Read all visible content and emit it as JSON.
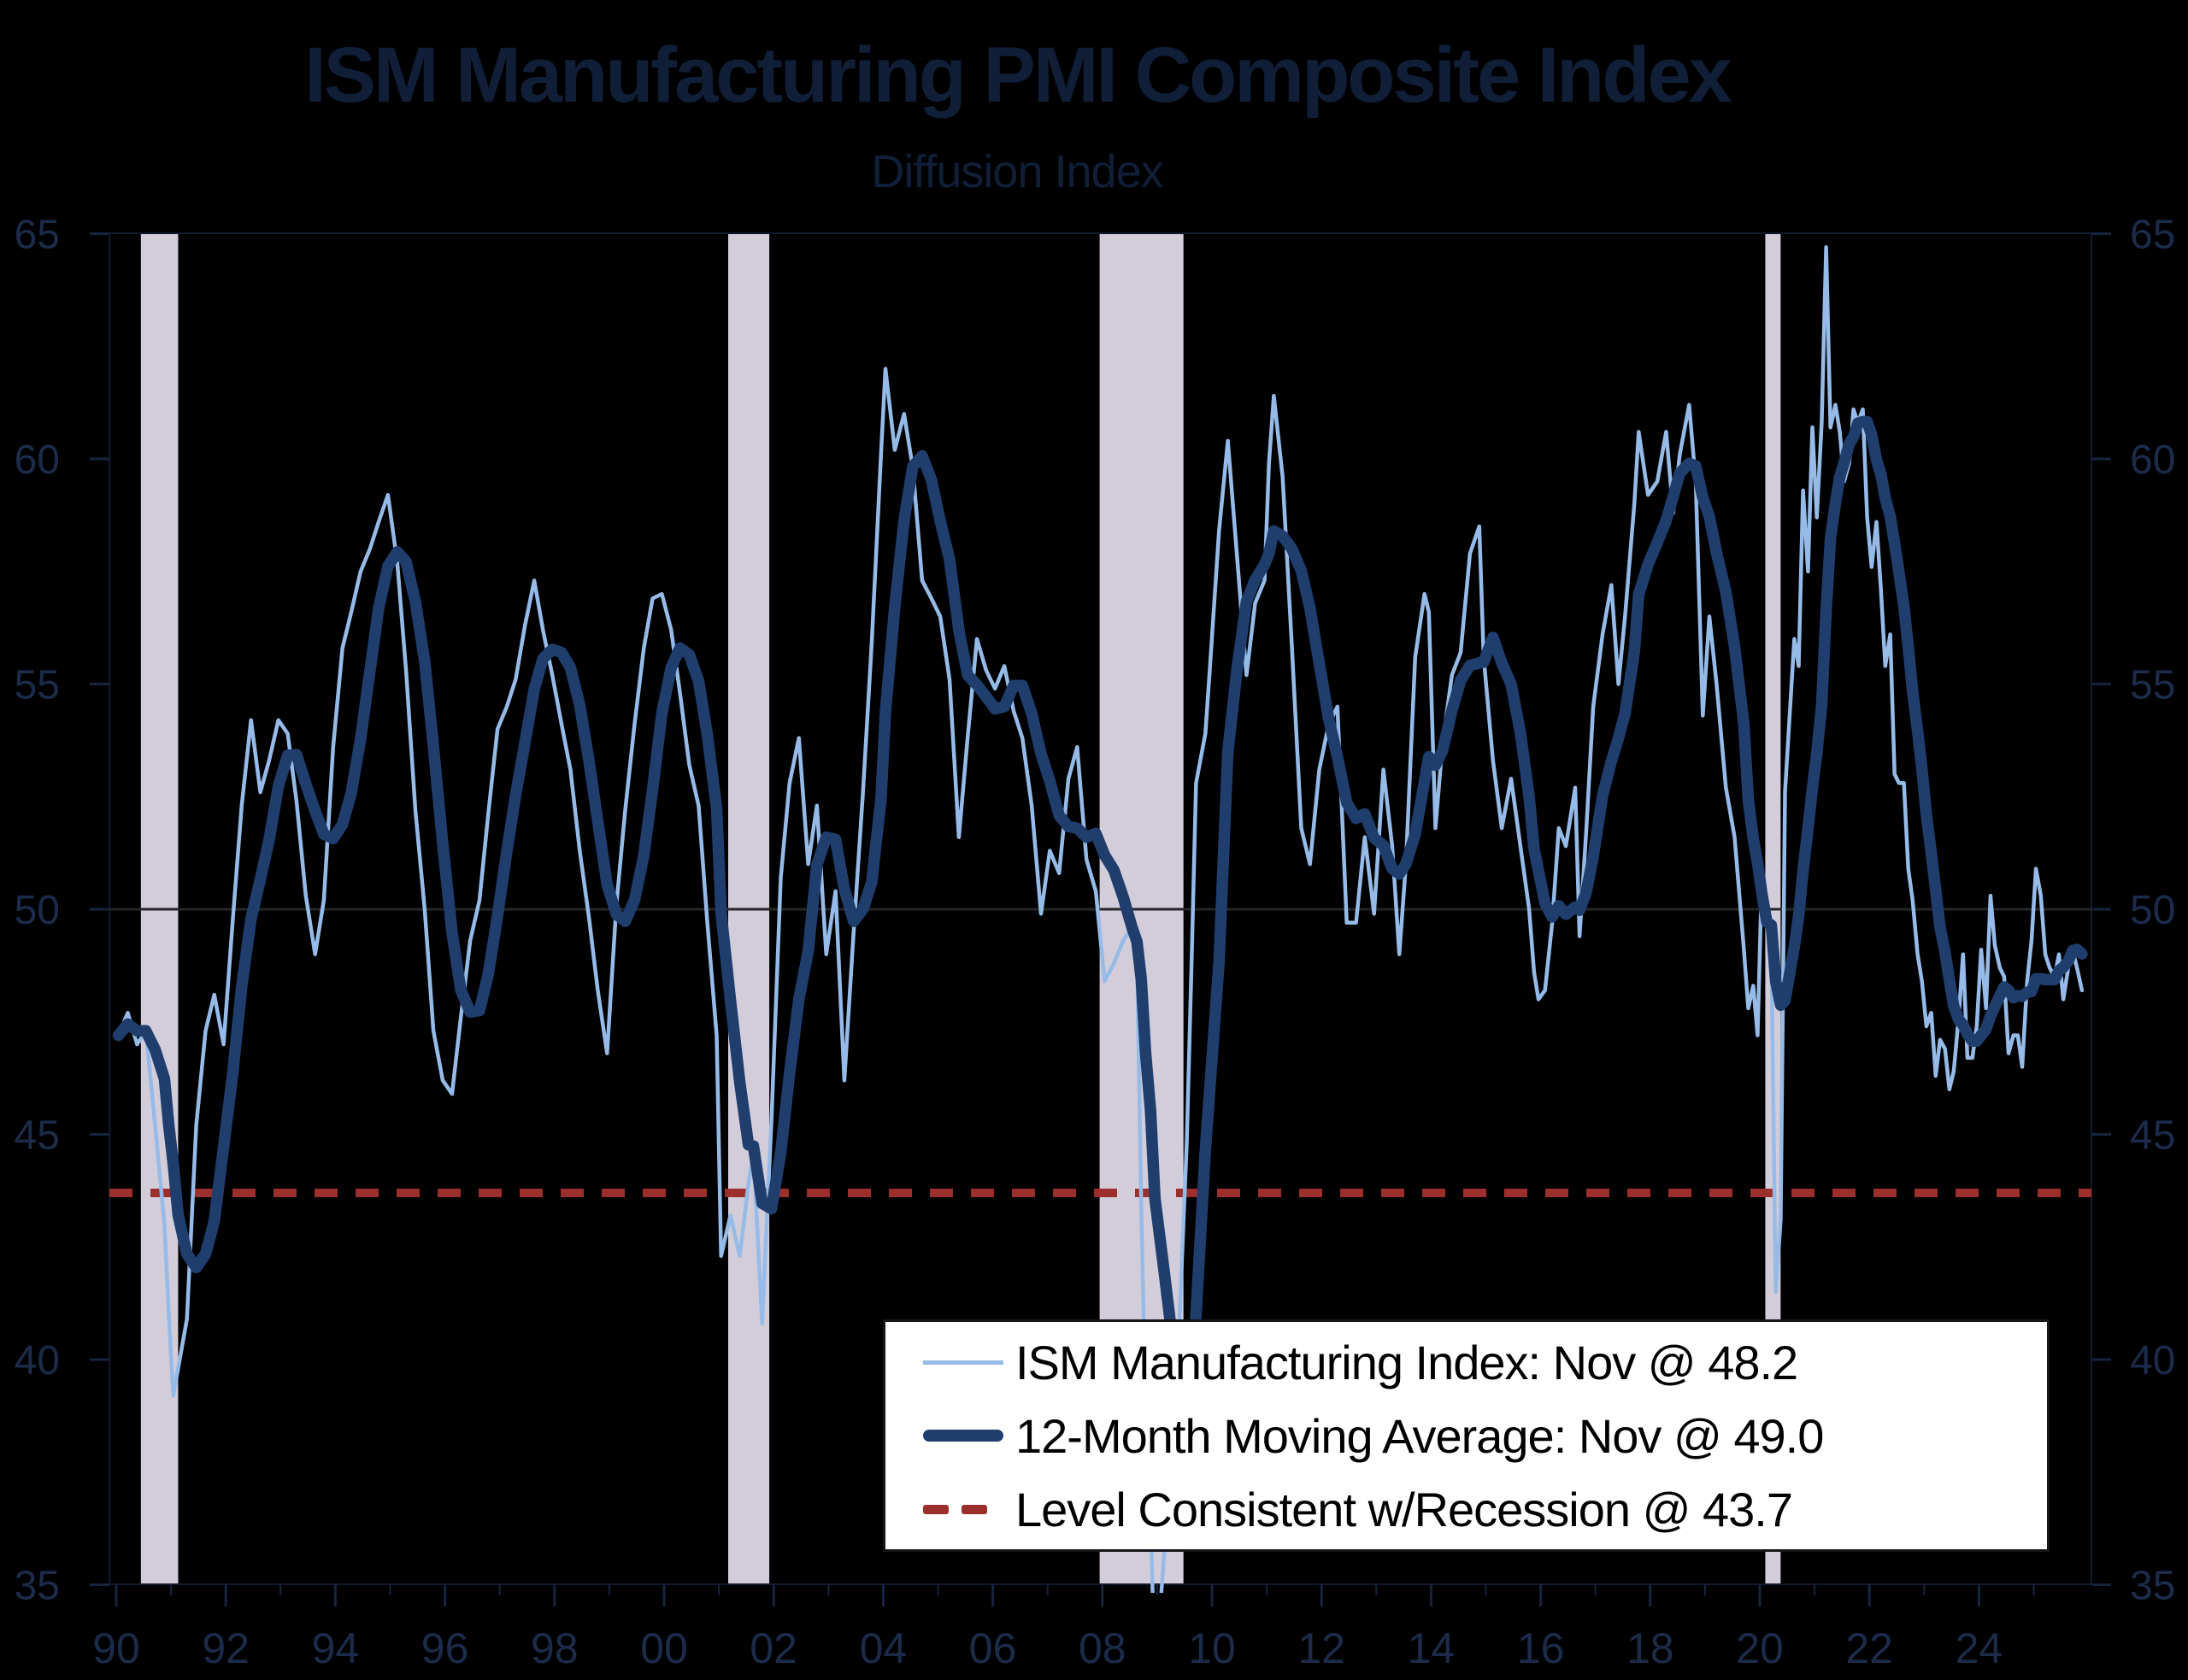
{
  "page": {
    "background": "#000000"
  },
  "chart_data": {
    "type": "line",
    "title": "ISM Manufacturing PMI Composite Index",
    "subtitle": "Diffusion Index",
    "xlabel": "",
    "ylabel": "Diffusion Index",
    "grid": false,
    "legend_position": "inside lower-right, white box with black border",
    "x_axis": {
      "range_years": [
        1989.87,
        2026.05
      ],
      "tick_label_years": [
        1990,
        1992,
        1994,
        1996,
        1998,
        2000,
        2002,
        2004,
        2006,
        2008,
        2010,
        2012,
        2014,
        2016,
        2018,
        2020,
        2022,
        2024
      ],
      "tick_labels": [
        "90",
        "92",
        "94",
        "96",
        "98",
        "00",
        "02",
        "04",
        "06",
        "08",
        "10",
        "12",
        "14",
        "16",
        "18",
        "20",
        "22",
        "24"
      ],
      "minor_tick_every_years": 1
    },
    "y_axis": {
      "range": [
        35,
        65
      ],
      "ticks": [
        35,
        40,
        45,
        50,
        55,
        60,
        65
      ],
      "sides": "both"
    },
    "reference_lines": {
      "midpoint": 50,
      "recession_level": 43.7
    },
    "recession_bands": [
      [
        1990.45,
        1991.13
      ],
      [
        2001.17,
        2001.92
      ],
      [
        2007.95,
        2009.48
      ],
      [
        2020.1,
        2020.38
      ]
    ],
    "latest": {
      "month": "Nov",
      "ism": 48.2,
      "moving_average": 49.0,
      "recession_level": 43.7
    },
    "series": [
      {
        "name": "ISM Manufacturing Index",
        "legend_label": "ISM Manufacturing Index: Nov @ 48.2",
        "color": "#96BBE8",
        "width": 4.5,
        "style": "solid",
        "values": [
          [
            1990.04,
            47.2
          ],
          [
            1990.21,
            47.7
          ],
          [
            1990.38,
            47.0
          ],
          [
            1990.54,
            47.3
          ],
          [
            1990.71,
            45.2
          ],
          [
            1990.88,
            43.0
          ],
          [
            1990.96,
            41.0
          ],
          [
            1991.04,
            39.2
          ],
          [
            1991.13,
            39.8
          ],
          [
            1991.29,
            40.9
          ],
          [
            1991.46,
            45.2
          ],
          [
            1991.63,
            47.3
          ],
          [
            1991.79,
            48.1
          ],
          [
            1991.96,
            47.0
          ],
          [
            1992.13,
            49.8
          ],
          [
            1992.29,
            52.3
          ],
          [
            1992.46,
            54.2
          ],
          [
            1992.63,
            52.6
          ],
          [
            1992.79,
            53.3
          ],
          [
            1992.96,
            54.2
          ],
          [
            1993.13,
            53.9
          ],
          [
            1993.29,
            52.4
          ],
          [
            1993.46,
            50.3
          ],
          [
            1993.63,
            49.0
          ],
          [
            1993.79,
            50.2
          ],
          [
            1993.96,
            53.6
          ],
          [
            1994.13,
            55.8
          ],
          [
            1994.29,
            56.6
          ],
          [
            1994.46,
            57.5
          ],
          [
            1994.63,
            58.0
          ],
          [
            1994.79,
            58.6
          ],
          [
            1994.96,
            59.2
          ],
          [
            1995.13,
            57.7
          ],
          [
            1995.29,
            55.3
          ],
          [
            1995.46,
            52.2
          ],
          [
            1995.63,
            50.0
          ],
          [
            1995.79,
            47.3
          ],
          [
            1995.96,
            46.2
          ],
          [
            1996.13,
            45.9
          ],
          [
            1996.29,
            47.6
          ],
          [
            1996.46,
            49.3
          ],
          [
            1996.63,
            50.2
          ],
          [
            1996.79,
            52.1
          ],
          [
            1996.96,
            54.0
          ],
          [
            1997.13,
            54.5
          ],
          [
            1997.29,
            55.1
          ],
          [
            1997.46,
            56.3
          ],
          [
            1997.63,
            57.3
          ],
          [
            1997.79,
            56.2
          ],
          [
            1997.96,
            55.2
          ],
          [
            1998.13,
            54.1
          ],
          [
            1998.29,
            53.1
          ],
          [
            1998.46,
            51.3
          ],
          [
            1998.63,
            49.8
          ],
          [
            1998.79,
            48.2
          ],
          [
            1998.96,
            46.8
          ],
          [
            1999.13,
            50.1
          ],
          [
            1999.29,
            52.2
          ],
          [
            1999.46,
            54.1
          ],
          [
            1999.63,
            55.8
          ],
          [
            1999.79,
            56.9
          ],
          [
            1999.96,
            57.0
          ],
          [
            2000.13,
            56.2
          ],
          [
            2000.29,
            54.8
          ],
          [
            2000.46,
            53.2
          ],
          [
            2000.63,
            52.3
          ],
          [
            2000.79,
            49.7
          ],
          [
            2000.96,
            47.2
          ],
          [
            2001.04,
            42.3
          ],
          [
            2001.21,
            43.2
          ],
          [
            2001.38,
            42.3
          ],
          [
            2001.54,
            43.9
          ],
          [
            2001.63,
            44.6
          ],
          [
            2001.79,
            40.8
          ],
          [
            2001.96,
            45.3
          ],
          [
            2002.13,
            50.7
          ],
          [
            2002.29,
            52.8
          ],
          [
            2002.46,
            53.8
          ],
          [
            2002.63,
            51.0
          ],
          [
            2002.79,
            52.3
          ],
          [
            2002.96,
            49.0
          ],
          [
            2003.13,
            50.4
          ],
          [
            2003.29,
            46.2
          ],
          [
            2003.46,
            49.5
          ],
          [
            2003.63,
            52.6
          ],
          [
            2003.79,
            55.9
          ],
          [
            2003.96,
            60.1
          ],
          [
            2004.04,
            62.0
          ],
          [
            2004.21,
            60.2
          ],
          [
            2004.38,
            61.0
          ],
          [
            2004.54,
            59.8
          ],
          [
            2004.71,
            57.3
          ],
          [
            2004.88,
            56.9
          ],
          [
            2005.04,
            56.5
          ],
          [
            2005.21,
            55.1
          ],
          [
            2005.38,
            51.6
          ],
          [
            2005.54,
            53.8
          ],
          [
            2005.71,
            56.0
          ],
          [
            2005.88,
            55.3
          ],
          [
            2006.04,
            54.9
          ],
          [
            2006.21,
            55.4
          ],
          [
            2006.38,
            54.4
          ],
          [
            2006.54,
            53.8
          ],
          [
            2006.71,
            52.3
          ],
          [
            2006.88,
            49.9
          ],
          [
            2007.04,
            51.3
          ],
          [
            2007.21,
            50.8
          ],
          [
            2007.38,
            52.9
          ],
          [
            2007.54,
            53.6
          ],
          [
            2007.71,
            51.1
          ],
          [
            2007.88,
            50.4
          ],
          [
            2008.04,
            48.4
          ],
          [
            2008.21,
            48.8
          ],
          [
            2008.38,
            49.3
          ],
          [
            2008.54,
            49.6
          ],
          [
            2008.63,
            49.2
          ],
          [
            2008.71,
            43.4
          ],
          [
            2008.79,
            38.9
          ],
          [
            2008.88,
            36.5
          ],
          [
            2008.96,
            32.9
          ],
          [
            2009.13,
            35.7
          ],
          [
            2009.29,
            36.4
          ],
          [
            2009.38,
            40.1
          ],
          [
            2009.54,
            44.8
          ],
          [
            2009.63,
            48.9
          ],
          [
            2009.71,
            52.8
          ],
          [
            2009.88,
            53.9
          ],
          [
            2009.96,
            55.3
          ],
          [
            2010.13,
            58.4
          ],
          [
            2010.29,
            60.4
          ],
          [
            2010.46,
            57.8
          ],
          [
            2010.63,
            55.2
          ],
          [
            2010.79,
            56.8
          ],
          [
            2010.96,
            57.3
          ],
          [
            2011.04,
            59.9
          ],
          [
            2011.13,
            61.4
          ],
          [
            2011.29,
            59.6
          ],
          [
            2011.46,
            55.8
          ],
          [
            2011.63,
            51.8
          ],
          [
            2011.79,
            51.0
          ],
          [
            2011.96,
            53.1
          ],
          [
            2012.13,
            54.1
          ],
          [
            2012.29,
            54.5
          ],
          [
            2012.46,
            49.7
          ],
          [
            2012.63,
            49.7
          ],
          [
            2012.79,
            51.6
          ],
          [
            2012.96,
            49.9
          ],
          [
            2013.13,
            53.1
          ],
          [
            2013.29,
            51.4
          ],
          [
            2013.42,
            49.0
          ],
          [
            2013.54,
            51.0
          ],
          [
            2013.71,
            55.6
          ],
          [
            2013.88,
            57.0
          ],
          [
            2013.96,
            56.6
          ],
          [
            2014.08,
            51.8
          ],
          [
            2014.21,
            53.7
          ],
          [
            2014.38,
            55.2
          ],
          [
            2014.54,
            55.7
          ],
          [
            2014.71,
            57.9
          ],
          [
            2014.88,
            58.5
          ],
          [
            2014.96,
            55.6
          ],
          [
            2015.13,
            53.3
          ],
          [
            2015.29,
            51.8
          ],
          [
            2015.46,
            52.9
          ],
          [
            2015.63,
            51.4
          ],
          [
            2015.79,
            50.0
          ],
          [
            2015.88,
            48.6
          ],
          [
            2015.96,
            48.0
          ],
          [
            2016.08,
            48.2
          ],
          [
            2016.21,
            49.7
          ],
          [
            2016.33,
            51.8
          ],
          [
            2016.46,
            51.4
          ],
          [
            2016.63,
            52.7
          ],
          [
            2016.71,
            49.4
          ],
          [
            2016.83,
            51.7
          ],
          [
            2016.96,
            54.5
          ],
          [
            2017.13,
            56.1
          ],
          [
            2017.29,
            57.2
          ],
          [
            2017.42,
            55.0
          ],
          [
            2017.54,
            56.5
          ],
          [
            2017.71,
            59.0
          ],
          [
            2017.79,
            60.6
          ],
          [
            2017.96,
            59.2
          ],
          [
            2018.13,
            59.5
          ],
          [
            2018.29,
            60.6
          ],
          [
            2018.42,
            58.8
          ],
          [
            2018.54,
            60.1
          ],
          [
            2018.71,
            61.2
          ],
          [
            2018.83,
            59.5
          ],
          [
            2018.96,
            54.3
          ],
          [
            2019.08,
            56.5
          ],
          [
            2019.21,
            55.0
          ],
          [
            2019.38,
            52.7
          ],
          [
            2019.54,
            51.6
          ],
          [
            2019.71,
            49.1
          ],
          [
            2019.79,
            47.8
          ],
          [
            2019.88,
            48.3
          ],
          [
            2019.96,
            47.2
          ],
          [
            2020.04,
            50.9
          ],
          [
            2020.13,
            50.1
          ],
          [
            2020.21,
            49.1
          ],
          [
            2020.29,
            41.5
          ],
          [
            2020.38,
            43.1
          ],
          [
            2020.46,
            52.6
          ],
          [
            2020.54,
            54.2
          ],
          [
            2020.63,
            56.0
          ],
          [
            2020.71,
            55.4
          ],
          [
            2020.79,
            59.3
          ],
          [
            2020.88,
            57.5
          ],
          [
            2020.96,
            60.7
          ],
          [
            2021.04,
            58.7
          ],
          [
            2021.13,
            60.8
          ],
          [
            2021.21,
            64.7
          ],
          [
            2021.29,
            60.7
          ],
          [
            2021.38,
            61.2
          ],
          [
            2021.46,
            60.6
          ],
          [
            2021.54,
            59.5
          ],
          [
            2021.63,
            59.9
          ],
          [
            2021.71,
            61.1
          ],
          [
            2021.79,
            60.8
          ],
          [
            2021.88,
            61.1
          ],
          [
            2021.96,
            58.7
          ],
          [
            2022.04,
            57.6
          ],
          [
            2022.13,
            58.6
          ],
          [
            2022.21,
            57.1
          ],
          [
            2022.29,
            55.4
          ],
          [
            2022.38,
            56.1
          ],
          [
            2022.46,
            53.0
          ],
          [
            2022.54,
            52.8
          ],
          [
            2022.63,
            52.8
          ],
          [
            2022.71,
            50.9
          ],
          [
            2022.79,
            50.2
          ],
          [
            2022.88,
            49.0
          ],
          [
            2022.96,
            48.4
          ],
          [
            2023.04,
            47.4
          ],
          [
            2023.13,
            47.7
          ],
          [
            2023.21,
            46.3
          ],
          [
            2023.29,
            47.1
          ],
          [
            2023.38,
            46.9
          ],
          [
            2023.46,
            46.0
          ],
          [
            2023.54,
            46.4
          ],
          [
            2023.63,
            47.6
          ],
          [
            2023.71,
            49.0
          ],
          [
            2023.79,
            46.7
          ],
          [
            2023.88,
            46.7
          ],
          [
            2023.96,
            47.4
          ],
          [
            2024.04,
            49.1
          ],
          [
            2024.13,
            47.8
          ],
          [
            2024.21,
            50.3
          ],
          [
            2024.29,
            49.2
          ],
          [
            2024.38,
            48.7
          ],
          [
            2024.46,
            48.5
          ],
          [
            2024.54,
            46.8
          ],
          [
            2024.63,
            47.2
          ],
          [
            2024.71,
            47.2
          ],
          [
            2024.79,
            46.5
          ],
          [
            2024.88,
            48.4
          ],
          [
            2024.96,
            49.3
          ],
          [
            2025.04,
            50.9
          ],
          [
            2025.13,
            50.3
          ],
          [
            2025.21,
            49.0
          ],
          [
            2025.29,
            48.7
          ],
          [
            2025.38,
            48.5
          ],
          [
            2025.46,
            49.0
          ],
          [
            2025.54,
            48.0
          ],
          [
            2025.63,
            48.7
          ],
          [
            2025.71,
            49.1
          ],
          [
            2025.79,
            48.7
          ],
          [
            2025.88,
            48.2
          ]
        ]
      },
      {
        "name": "12-Month Moving Average",
        "legend_label": "12-Month Moving Average: Nov @ 49.0",
        "color": "#1F3E6E",
        "width": 13.5,
        "style": "solid",
        "derived": "trailing 12-month moving average of the ISM Manufacturing Index series",
        "last_value": 49.0
      },
      {
        "name": "Level Consistent w/Recession",
        "legend_label": "Level Consistent w/Recession @ 43.7",
        "color": "#9C2F2B",
        "width": 10,
        "style": "dashed",
        "value": 43.7
      }
    ],
    "colors": {
      "recession_band": "#D3CDDA",
      "midpoint_line": "#262626",
      "axis_spine": "#111B2D",
      "axis_tick": "#16243E",
      "axis_text": "#1B2B49",
      "title_text": "#101E38",
      "legend_bg": "#FFFFFF",
      "legend_border": "#15151A",
      "legend_text": "#000000"
    }
  }
}
